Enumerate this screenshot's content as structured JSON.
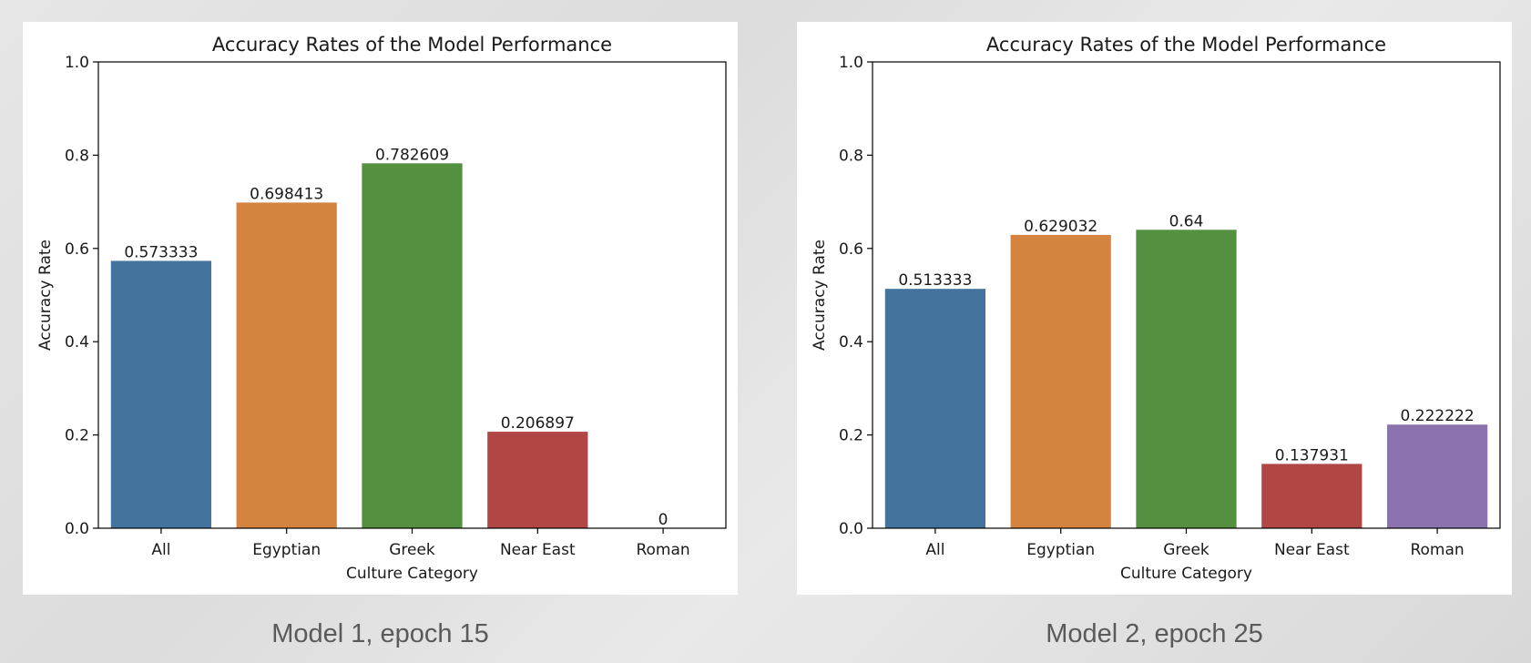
{
  "chart_data": [
    {
      "type": "bar",
      "title": "Accuracy Rates of the Model Performance",
      "xlabel": "Culture Category",
      "ylabel": "Accuracy Rate",
      "categories": [
        "All",
        "Egyptian",
        "Greek",
        "Near East",
        "Roman"
      ],
      "values": [
        0.573333,
        0.698413,
        0.782609,
        0.206897,
        0
      ],
      "value_labels": [
        "0.573333",
        "0.698413",
        "0.782609",
        "0.206897",
        "0"
      ],
      "colors": [
        "#44749d",
        "#d5843f",
        "#53903f",
        "#b14744",
        "#8c72ae"
      ],
      "ylim": [
        0,
        1.0
      ],
      "yticks": [
        "0.0",
        "0.2",
        "0.4",
        "0.6",
        "0.8",
        "1.0"
      ],
      "grid": false
    },
    {
      "type": "bar",
      "title": "Accuracy Rates of the Model Performance",
      "xlabel": "Culture Category",
      "ylabel": "Accuracy Rate",
      "categories": [
        "All",
        "Egyptian",
        "Greek",
        "Near East",
        "Roman"
      ],
      "values": [
        0.513333,
        0.629032,
        0.64,
        0.137931,
        0.222222
      ],
      "value_labels": [
        "0.513333",
        "0.629032",
        "0.64",
        "0.137931",
        "0.222222"
      ],
      "colors": [
        "#44749d",
        "#d5843f",
        "#53903f",
        "#b14744",
        "#8c72ae"
      ],
      "ylim": [
        0,
        1.0
      ],
      "yticks": [
        "0.0",
        "0.2",
        "0.4",
        "0.6",
        "0.8",
        "1.0"
      ],
      "grid": false
    }
  ],
  "captions": [
    "Model 1, epoch 15",
    "Model 2, epoch 25"
  ]
}
